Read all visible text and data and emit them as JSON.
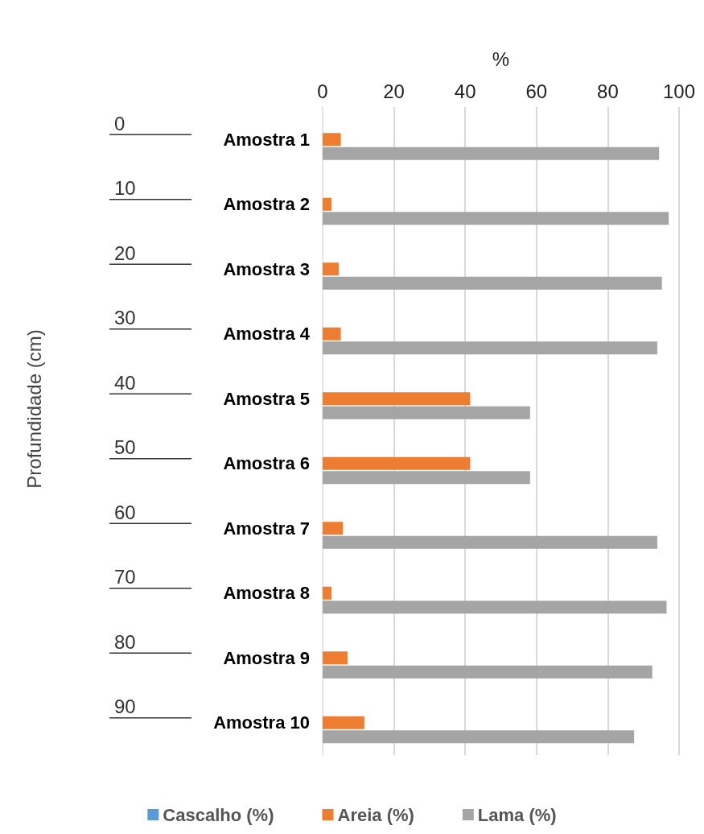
{
  "chart_data": {
    "type": "bar",
    "orientation": "horizontal",
    "xlabel": "%",
    "categories": [
      "Amostra 1",
      "Amostra 2",
      "Amostra 3",
      "Amostra 4",
      "Amostra 5",
      "Amostra 6",
      "Amostra 7",
      "Amostra 8",
      "Amostra 9",
      "Amostra 10"
    ],
    "series": [
      {
        "name": "Cascalho (%)",
        "color": "#5b9bd5",
        "values": [
          0,
          0,
          0,
          0,
          0,
          0,
          0,
          0,
          0,
          0
        ]
      },
      {
        "name": "Areia (%)",
        "color": "#ed7d31",
        "values": [
          5.1,
          2.5,
          4.5,
          5.1,
          41.4,
          41.4,
          5.7,
          2.5,
          7.0,
          11.7
        ]
      },
      {
        "name": "Lama (%)",
        "color": "#a5a5a5",
        "values": [
          94.4,
          97.1,
          95.2,
          93.9,
          58.2,
          58.2,
          93.9,
          96.5,
          92.5,
          87.4
        ]
      }
    ],
    "xlim": [
      0,
      100
    ],
    "xticks": [
      0,
      20,
      40,
      60,
      80,
      100
    ],
    "grid": "x",
    "legend": "bottom",
    "annotations": [
      "0",
      "10",
      "20",
      "30",
      "40",
      "50",
      "60",
      "70",
      "80",
      "90",
      "Profundidade (cm)"
    ]
  }
}
